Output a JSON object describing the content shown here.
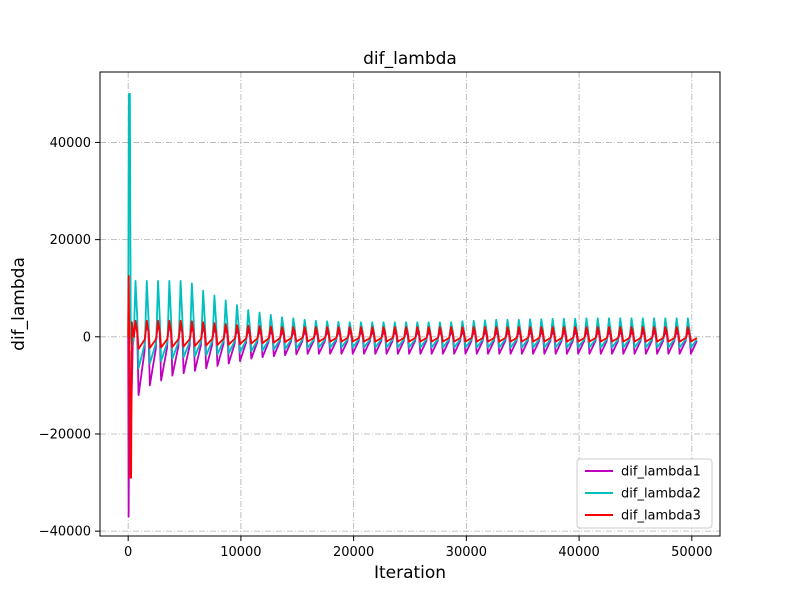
{
  "chart_data": {
    "type": "line",
    "title": "dif_lambda",
    "xlabel": "Iteration",
    "ylabel": "dif_lambda",
    "xlim": [
      -2500,
      52500
    ],
    "ylim": [
      -41000,
      54500
    ],
    "xticks": [
      0,
      10000,
      20000,
      30000,
      40000,
      50000
    ],
    "xtick_labels": [
      "0",
      "10000",
      "20000",
      "30000",
      "40000",
      "50000"
    ],
    "yticks": [
      -40000,
      -20000,
      0,
      20000,
      40000
    ],
    "ytick_labels": [
      "−40000",
      "−20000",
      "0",
      "20000",
      "40000"
    ],
    "grid": true,
    "legend_position": "lower-right",
    "series": [
      {
        "name": "dif_lambda1",
        "color": "#bf00bf",
        "initial": [
          [
            0,
            0
          ],
          [
            40,
            -37000
          ],
          [
            120,
            -3000
          ],
          [
            250,
            -18000
          ],
          [
            400,
            -2000
          ]
        ],
        "period_start": 500,
        "period": 1000,
        "peaks": [
          2800,
          2800,
          2700,
          2600,
          2400,
          2200,
          2000,
          1800,
          1600,
          1400,
          1300,
          1200,
          1100,
          1000,
          1000,
          1000,
          1000,
          1000,
          1000,
          1000,
          1000,
          1000,
          1000,
          1000,
          1000,
          1000,
          1000,
          1000,
          1000,
          1000,
          1000,
          1000,
          1000,
          1000,
          1000,
          1000,
          1000,
          1000,
          1000,
          1000,
          1000,
          1000,
          1000,
          1000,
          1000,
          1000,
          1000,
          1000,
          1000,
          1000
        ],
        "troughs": [
          -12000,
          -10000,
          -9000,
          -8000,
          -7500,
          -7000,
          -6500,
          -6000,
          -5500,
          -5000,
          -4500,
          -4200,
          -4000,
          -3800,
          -3600,
          -3500,
          -3500,
          -3500,
          -3500,
          -3500,
          -3500,
          -3500,
          -3500,
          -3500,
          -3500,
          -3500,
          -3500,
          -3500,
          -3500,
          -3500,
          -3500,
          -3500,
          -3500,
          -3500,
          -3500,
          -3500,
          -3500,
          -3500,
          -3500,
          -3500,
          -3500,
          -3500,
          -3500,
          -3500,
          -3500,
          -3500,
          -3500,
          -3500,
          -3500,
          -3500
        ]
      },
      {
        "name": "dif_lambda2",
        "color": "#00bfbf",
        "initial": [
          [
            0,
            0
          ],
          [
            60,
            50000
          ],
          [
            150,
            50000
          ],
          [
            230,
            0
          ],
          [
            350,
            -2000
          ]
        ],
        "period_start": 500,
        "period": 1000,
        "peaks": [
          11500,
          11500,
          11500,
          11500,
          11500,
          11000,
          9500,
          8500,
          7500,
          6500,
          5500,
          5000,
          4500,
          4000,
          3800,
          3500,
          3300,
          3200,
          3100,
          3000,
          3000,
          3000,
          3000,
          3000,
          3000,
          3000,
          3000,
          3000,
          3000,
          3200,
          3300,
          3400,
          3500,
          3500,
          3500,
          3600,
          3600,
          3700,
          3700,
          3700,
          3800,
          3800,
          3800,
          3800,
          3800,
          3800,
          3800,
          3800,
          3800,
          3800
        ],
        "troughs": [
          -6500,
          -5500,
          -5000,
          -4500,
          -4200,
          -4000,
          -3800,
          -3600,
          -3400,
          -3200,
          -3000,
          -2800,
          -2600,
          -2500,
          -2400,
          -2300,
          -2200,
          -2200,
          -2200,
          -2200,
          -2200,
          -2200,
          -2200,
          -2200,
          -2200,
          -2200,
          -2200,
          -2200,
          -2200,
          -2200,
          -2200,
          -2200,
          -2200,
          -2200,
          -2200,
          -2200,
          -2200,
          -2200,
          -2200,
          -2200,
          -2200,
          -2200,
          -2200,
          -2200,
          -2200,
          -2200,
          -2200,
          -2200,
          -2200,
          -2200
        ]
      },
      {
        "name": "dif_lambda3",
        "color": "#ff0000",
        "initial": [
          [
            0,
            0
          ],
          [
            40,
            12500
          ],
          [
            100,
            0
          ],
          [
            180,
            -29000
          ],
          [
            260,
            -29000
          ],
          [
            330,
            3000
          ]
        ],
        "period_start": 500,
        "period": 1000,
        "peaks": [
          3300,
          3300,
          3300,
          3300,
          3300,
          3200,
          3000,
          2800,
          2600,
          2400,
          2300,
          2200,
          2100,
          2000,
          2000,
          2000,
          2000,
          2000,
          2000,
          2000,
          2000,
          2000,
          2000,
          2000,
          2000,
          2000,
          2000,
          2000,
          2000,
          2000,
          2000,
          2000,
          2000,
          2000,
          2000,
          2000,
          2000,
          2000,
          2000,
          2000,
          2000,
          2000,
          2000,
          2000,
          2000,
          2000,
          2000,
          2000,
          2000,
          2000
        ],
        "troughs": [
          -2500,
          -2300,
          -2200,
          -2100,
          -2000,
          -1900,
          -1800,
          -1700,
          -1600,
          -1500,
          -1400,
          -1300,
          -1200,
          -1100,
          -1000,
          -1000,
          -1000,
          -1000,
          -1000,
          -1000,
          -1000,
          -1000,
          -1000,
          -1000,
          -1000,
          -1000,
          -1000,
          -1000,
          -1000,
          -1000,
          -1000,
          -1000,
          -1000,
          -1000,
          -1000,
          -1000,
          -1000,
          -1000,
          -1000,
          -1000,
          -1000,
          -1000,
          -1000,
          -1000,
          -1000,
          -1000,
          -1000,
          -1000,
          -1000,
          -1000
        ]
      }
    ]
  }
}
